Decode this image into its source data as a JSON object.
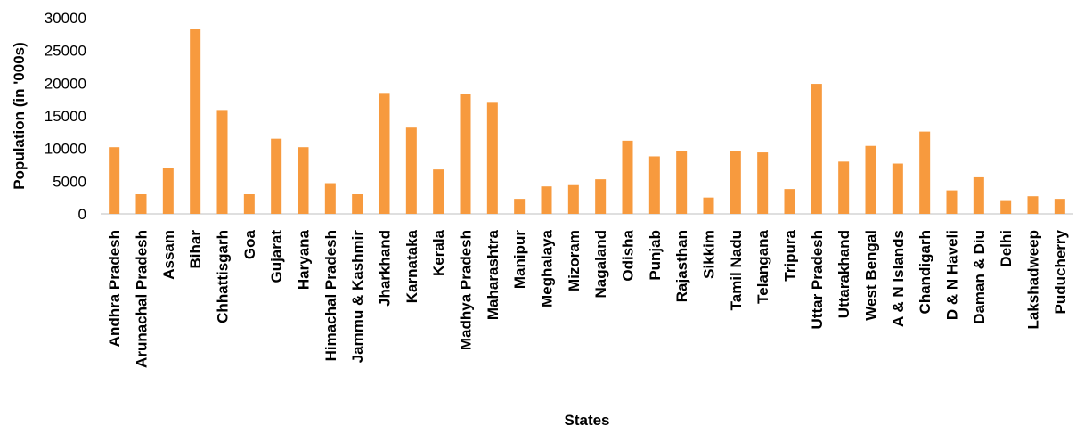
{
  "chart_data": {
    "type": "bar",
    "title": "",
    "xlabel": "States",
    "ylabel": "Population (in '000s)",
    "ylim": [
      0,
      30000
    ],
    "yticks": [
      0,
      5000,
      10000,
      15000,
      20000,
      25000,
      30000
    ],
    "grid": false,
    "legend": "none",
    "bar_color": "#f79a3e",
    "categories": [
      "Andhra Pradesh",
      "Arunachal Pradesh",
      "Assam",
      "Bihar",
      "Chhattisgarh",
      "Goa",
      "Gujarat",
      "Haryana",
      "Himachal Pradesh",
      "Jammu & Kashmir",
      "Jharkhand",
      "Karnataka",
      "Kerala",
      "Madhya Pradesh",
      "Maharashtra",
      "Manipur",
      "Meghalaya",
      "Mizoram",
      "Nagaland",
      "Odisha",
      "Punjab",
      "Rajasthan",
      "Sikkim",
      "Tamil Nadu",
      "Telangana",
      "Tripura",
      "Uttar Pradesh",
      "Uttarakhand",
      "West Bengal",
      "A & N Islands",
      "Chandigarh",
      "D & N Haveli",
      "Daman & Diu",
      "Delhi",
      "Lakshadweep",
      "Puducherry"
    ],
    "values": [
      10200,
      3000,
      7000,
      28300,
      15900,
      3000,
      11500,
      10200,
      4700,
      3000,
      18500,
      13200,
      6800,
      18400,
      17000,
      2300,
      4200,
      4400,
      5300,
      11200,
      8800,
      9600,
      2500,
      9600,
      9400,
      3800,
      19900,
      8000,
      10400,
      7700,
      12600,
      3600,
      5600,
      2100,
      2700,
      2300
    ]
  }
}
